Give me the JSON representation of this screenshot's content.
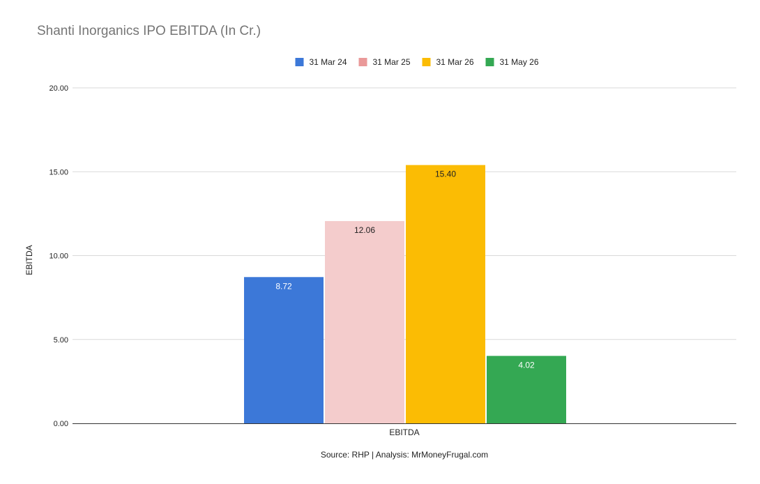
{
  "chart_data": {
    "type": "bar",
    "title": "Shanti Inorganics IPO EBITDA (In Cr.)",
    "categories": [
      "EBITDA"
    ],
    "xlabel": "EBITDA",
    "ylabel": "EBITDA",
    "ylim": [
      0,
      20
    ],
    "yticks": [
      "0.00",
      "5.00",
      "10.00",
      "15.00",
      "20.00"
    ],
    "grid": true,
    "legend_position": "top",
    "series": [
      {
        "name": "31 Mar 24",
        "values": [
          8.72
        ],
        "label": "8.72",
        "color": "#3c78d8",
        "label_color": "#ffffff"
      },
      {
        "name": "31 Mar 25",
        "values": [
          12.06
        ],
        "label": "12.06",
        "color": "#f4cccc",
        "legend_color": "#ea9999",
        "label_color": "#222222"
      },
      {
        "name": "31 Mar 26",
        "values": [
          15.4
        ],
        "label": "15.40",
        "color": "#fbbc04",
        "label_color": "#222222"
      },
      {
        "name": "31 May 26",
        "values": [
          4.02
        ],
        "label": "4.02",
        "color": "#34a853",
        "label_color": "#ffffff"
      }
    ],
    "source": "Source: RHP | Analysis: MrMoneyFrugal.com"
  }
}
